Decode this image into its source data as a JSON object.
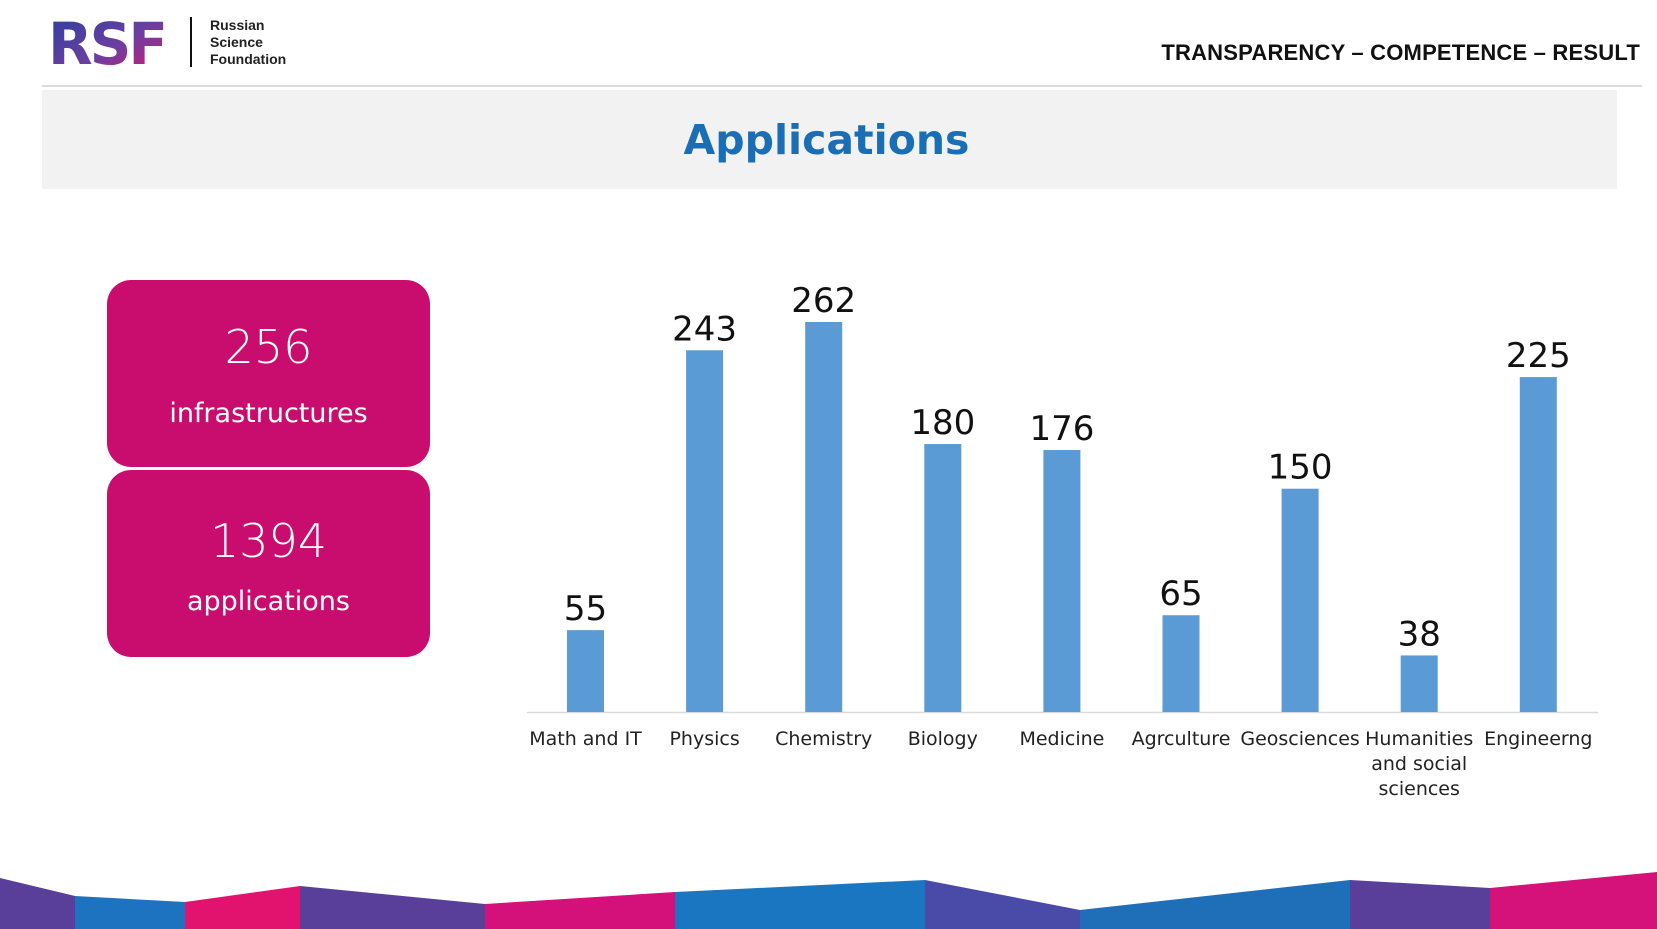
{
  "header": {
    "logo_text": "RSF",
    "org_lines": [
      "Russian",
      "Science",
      "Foundation"
    ],
    "motto": "TRANSPARENCY – COMPETENCE – RESULT"
  },
  "title": "Applications",
  "stats": [
    {
      "value": "256",
      "label": "infrastructures"
    },
    {
      "value": "1394",
      "label": "applications"
    }
  ],
  "colors": {
    "bar": "#5b9bd5",
    "card": "#c90d6e",
    "title": "#1a6eb5"
  },
  "chart_data": {
    "type": "bar",
    "categories": [
      [
        "Math and IT"
      ],
      [
        "Physics"
      ],
      [
        "Chemistry"
      ],
      [
        "Biology"
      ],
      [
        "Medicine"
      ],
      [
        "Agrculture"
      ],
      [
        "Geosciences"
      ],
      [
        "Humanities",
        "and social",
        "sciences"
      ],
      [
        "Engineerng"
      ]
    ],
    "values": [
      55,
      243,
      262,
      180,
      176,
      65,
      150,
      38,
      225
    ],
    "title": "",
    "xlabel": "",
    "ylabel": "",
    "ylim": [
      0,
      262
    ],
    "grid": false,
    "data_labels": true
  }
}
